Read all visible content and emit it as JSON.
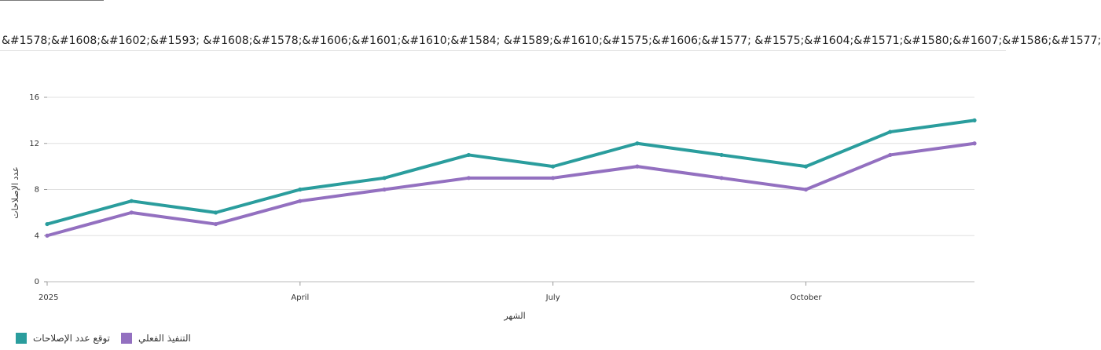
{
  "page": {
    "title": "&#1578;&#1608;&#1602;&#1593; &#1608;&#1578;&#1606;&#1601;&#1610;&#1584; &#1589;&#1610;&#1575;&#1606;&#1577; &#1575;&#1604;&#1571;&#1580;&#1607;&#1586;&#1577;"
  },
  "chart_data": {
    "type": "line",
    "xlabel": "الشهر",
    "ylabel": "عدد الإصلاحات",
    "ylim": [
      0,
      16
    ],
    "y_ticks": [
      "0",
      "4",
      "8",
      "12",
      "16"
    ],
    "x_ticks": [
      {
        "label": "2025",
        "month_index": 0
      },
      {
        "label": "April",
        "month_index": 3
      },
      {
        "label": "July",
        "month_index": 6
      },
      {
        "label": "October",
        "month_index": 9
      }
    ],
    "x": [
      "2025-01",
      "2025-02",
      "2025-03",
      "2025-04",
      "2025-05",
      "2025-06",
      "2025-07",
      "2025-08",
      "2025-09",
      "2025-10",
      "2025-11",
      "2025-12"
    ],
    "grid": true,
    "legend_position": "bottom-left",
    "series": [
      {
        "name": "توقع عدد الإصلاحات",
        "color": "#2a9d9d",
        "values": [
          5,
          7,
          6,
          8,
          9,
          11,
          10,
          12,
          11,
          10,
          13,
          14
        ]
      },
      {
        "name": "التنفيذ الفعلي",
        "color": "#9370c0",
        "values": [
          4,
          6,
          5,
          7,
          8,
          9,
          9,
          10,
          9,
          8,
          11,
          12
        ]
      }
    ]
  }
}
